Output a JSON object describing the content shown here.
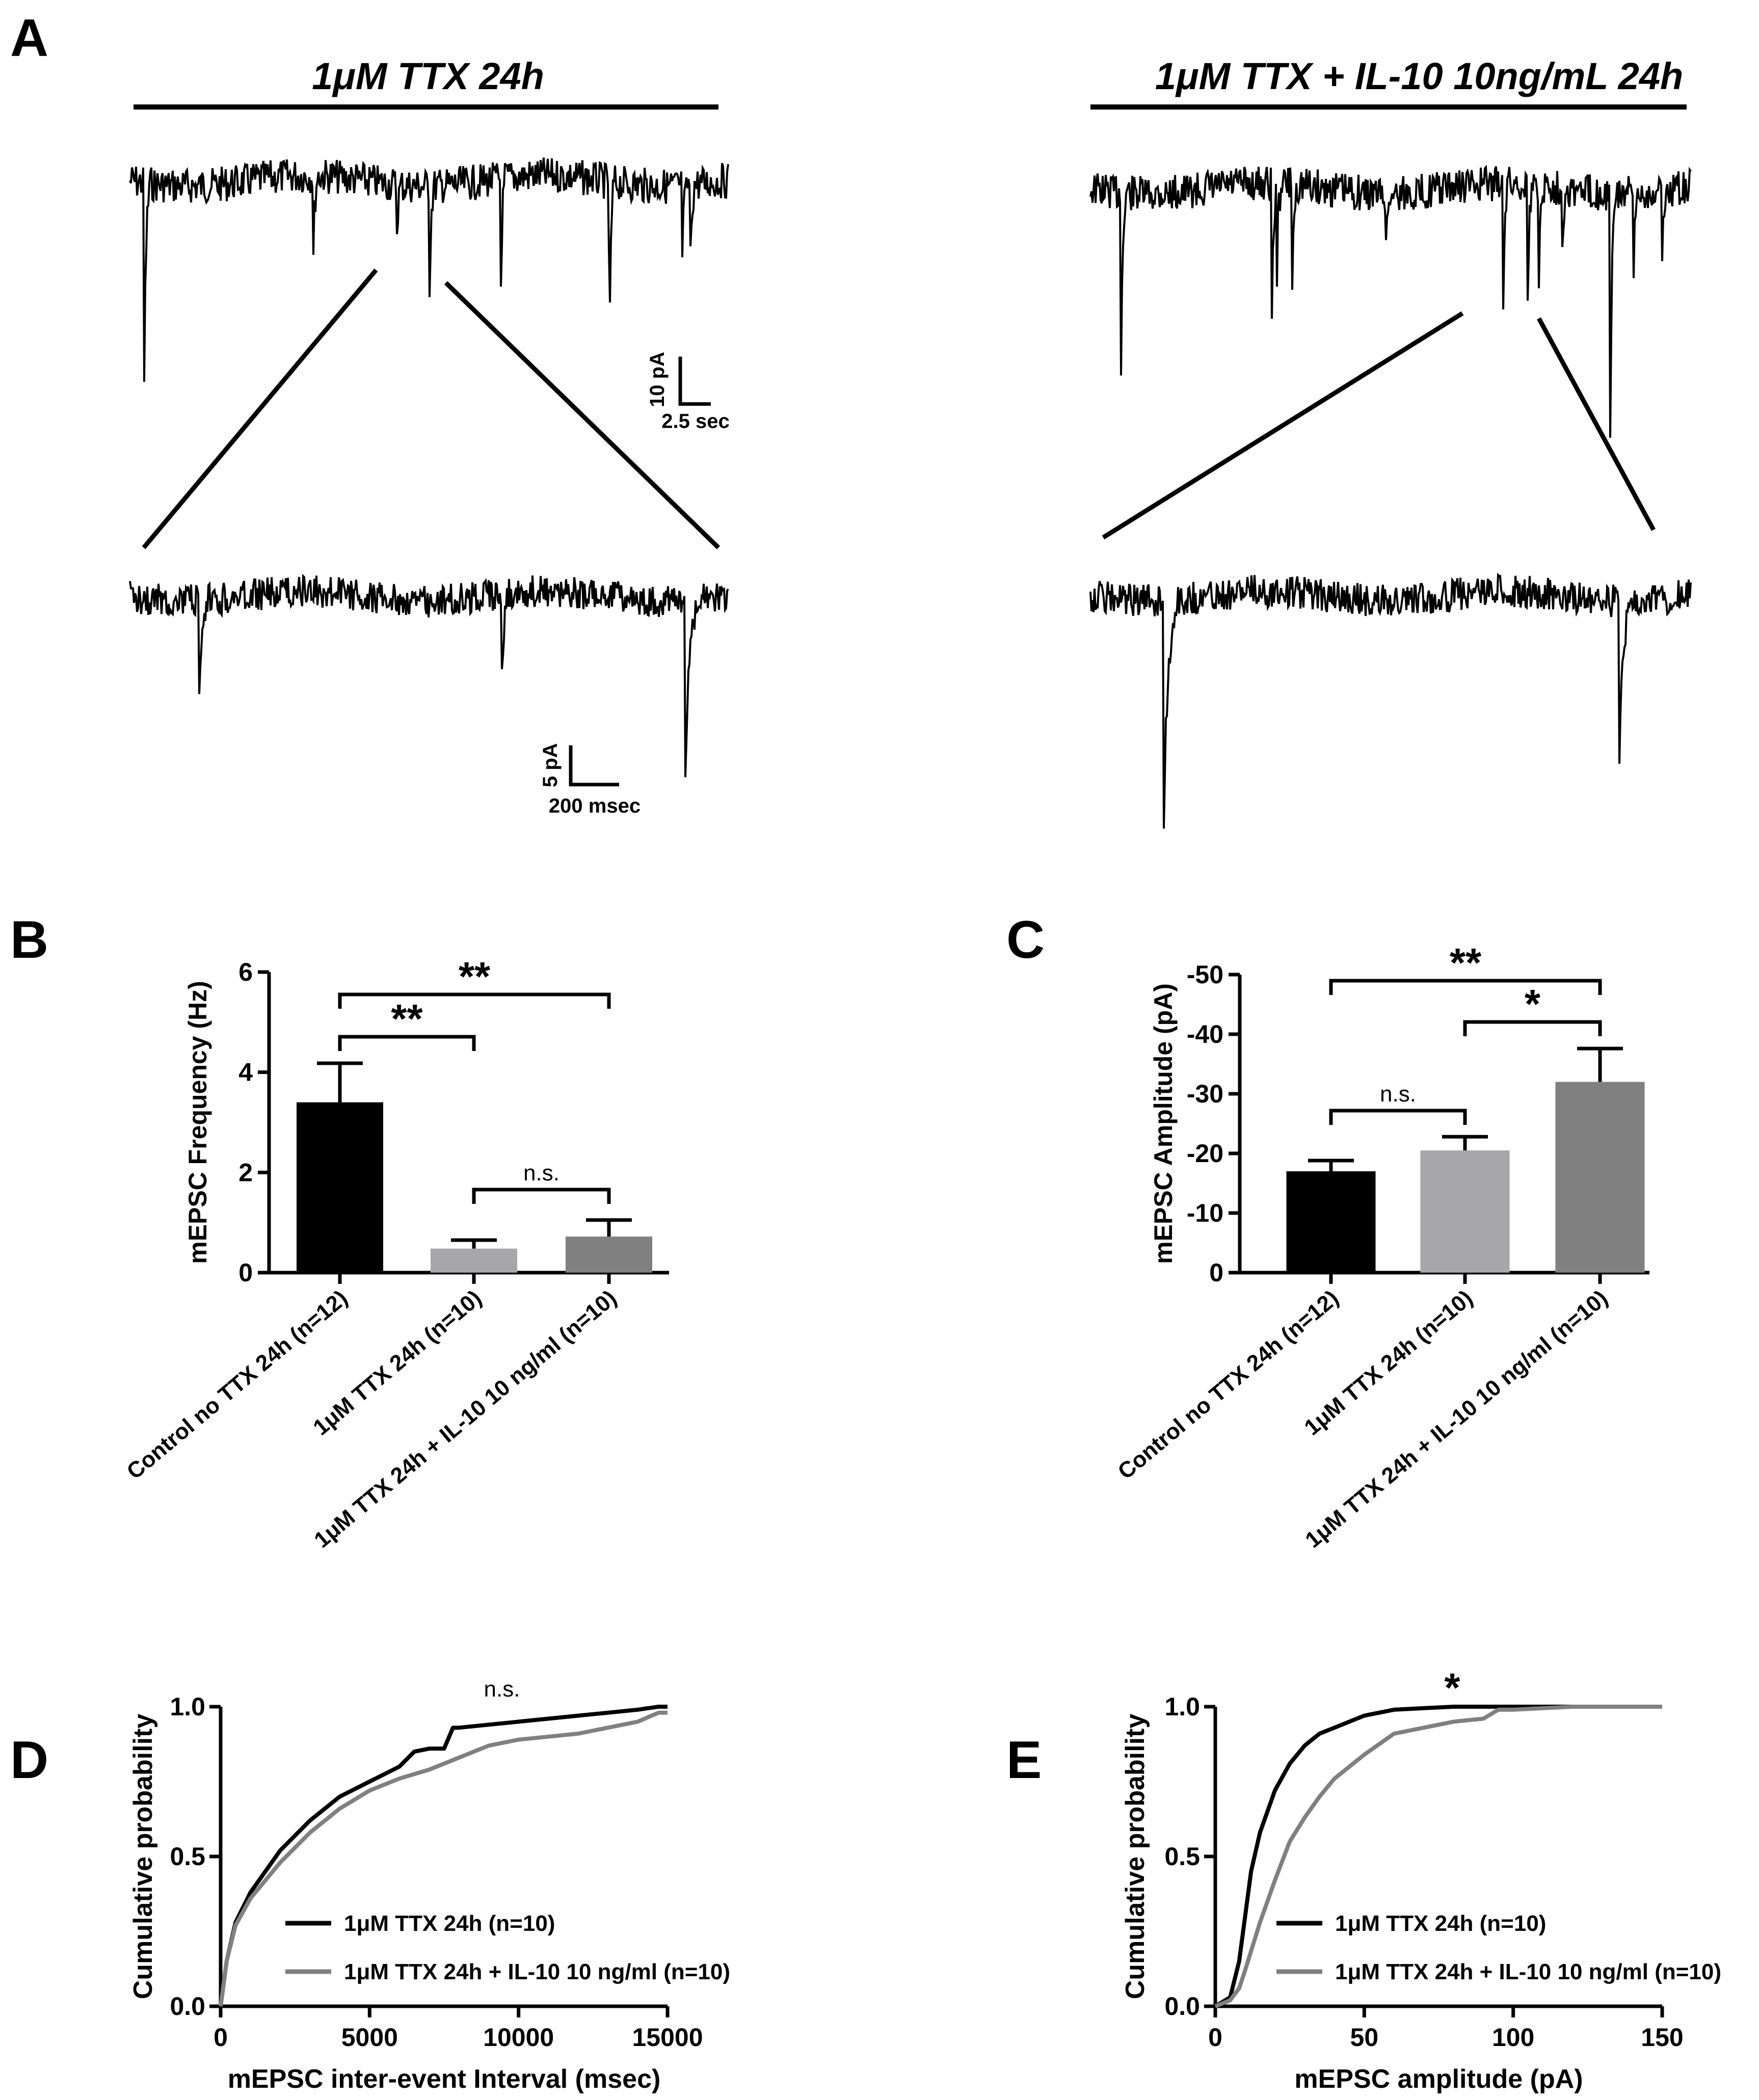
{
  "colors": {
    "black": "#000000",
    "light_gray": "#a6a6ab",
    "dark_gray": "#808080",
    "gray_line": "#808080"
  },
  "panelA": {
    "label": "A",
    "left_title": "1μM TTX 24h",
    "right_title": "1μM TTX + IL-10 10ng/mL 24h",
    "scale_top": {
      "y_label": "10 pA",
      "x_label": "2.5 sec"
    },
    "scale_bottom": {
      "y_label": "5 pA",
      "x_label": "200 msec"
    }
  },
  "chart_data": [
    {
      "panel": "B",
      "type": "bar",
      "ylabel": "mEPSC Frequency (Hz)",
      "ylim": [
        0,
        6
      ],
      "yticks": [
        "0",
        "2",
        "4",
        "6"
      ],
      "categories": [
        "Control no TTX 24h (n=12)",
        "1μM TTX 24h (n=10)",
        "1μM TTX 24h + IL-10 10 ng/ml (n=10)"
      ],
      "values": [
        3.4,
        0.48,
        0.72
      ],
      "errors": [
        0.78,
        0.17,
        0.33
      ],
      "colors": [
        "#000000",
        "#a6a6ab",
        "#808080"
      ],
      "significance": [
        {
          "from": 0,
          "to": 2,
          "label": "**"
        },
        {
          "from": 0,
          "to": 1,
          "label": "**"
        },
        {
          "from": 1,
          "to": 2,
          "label": "n.s."
        }
      ]
    },
    {
      "panel": "C",
      "type": "bar",
      "ylabel": "mEPSC Amplitude (pA)",
      "ylim": [
        0,
        -50
      ],
      "yticks": [
        "0",
        "-10",
        "-20",
        "-30",
        "-40",
        "-50"
      ],
      "categories": [
        "Control no TTX 24h (n=12)",
        "1μM TTX 24h  (n=10)",
        "1μM TTX 24h + IL-10 10 ng/ml (n=10)"
      ],
      "values": [
        -17,
        -20.5,
        -32
      ],
      "errors": [
        1.8,
        2.3,
        5.6
      ],
      "colors": [
        "#000000",
        "#a6a6ab",
        "#808080"
      ],
      "significance": [
        {
          "from": 0,
          "to": 2,
          "label": "**"
        },
        {
          "from": 1,
          "to": 2,
          "label": "*"
        },
        {
          "from": 0,
          "to": 1,
          "label": "n.s."
        }
      ]
    },
    {
      "panel": "D",
      "type": "line",
      "xlabel": "mEPSC inter-event Interval (msec)",
      "ylabel": "Cumulative probability",
      "xlim": [
        0,
        15000
      ],
      "ylim": [
        0,
        1
      ],
      "xticks": [
        "0",
        "5000",
        "10000",
        "15000"
      ],
      "yticks": [
        "0.0",
        "0.5",
        "1.0"
      ],
      "annotation": "n.s.",
      "series": [
        {
          "name": "1μM TTX 24h (n=10)",
          "color": "#000000",
          "x": [
            0,
            200,
            500,
            1000,
            1500,
            2000,
            3000,
            4000,
            5000,
            6000,
            6500,
            7000,
            7500,
            7800,
            8000,
            9000,
            10000,
            11000,
            12000,
            13000,
            14000,
            14700,
            15000
          ],
          "y": [
            0,
            0.15,
            0.28,
            0.38,
            0.45,
            0.52,
            0.62,
            0.7,
            0.75,
            0.8,
            0.85,
            0.86,
            0.86,
            0.93,
            0.93,
            0.94,
            0.95,
            0.96,
            0.97,
            0.98,
            0.99,
            1.0,
            1.0
          ]
        },
        {
          "name": "1μM TTX 24h + IL-10 10 ng/ml (n=10)",
          "color": "#808080",
          "x": [
            0,
            200,
            500,
            1000,
            1500,
            2000,
            3000,
            4000,
            5000,
            6000,
            7000,
            8000,
            9000,
            10000,
            11000,
            12000,
            13000,
            14000,
            14700,
            15000
          ],
          "y": [
            0,
            0.15,
            0.27,
            0.36,
            0.42,
            0.48,
            0.58,
            0.66,
            0.72,
            0.76,
            0.79,
            0.83,
            0.87,
            0.89,
            0.9,
            0.91,
            0.93,
            0.95,
            0.98,
            0.98
          ]
        }
      ]
    },
    {
      "panel": "E",
      "type": "line",
      "xlabel": "mEPSC amplitude (pA)",
      "ylabel": "Cumulative probability",
      "xlim": [
        0,
        150
      ],
      "ylim": [
        0,
        1
      ],
      "xticks": [
        "0",
        "50",
        "100",
        "150"
      ],
      "yticks": [
        "0.0",
        "0.5",
        "1.0"
      ],
      "annotation": "*",
      "series": [
        {
          "name": "1μM TTX 24h (n=10)",
          "color": "#000000",
          "x": [
            0,
            5,
            8,
            10,
            12,
            15,
            20,
            25,
            30,
            35,
            40,
            50,
            60,
            70,
            80,
            100,
            120,
            150
          ],
          "y": [
            0,
            0.03,
            0.15,
            0.3,
            0.45,
            0.58,
            0.72,
            0.81,
            0.87,
            0.91,
            0.93,
            0.97,
            0.99,
            0.995,
            1.0,
            1.0,
            1.0,
            1.0
          ]
        },
        {
          "name": "1μM TTX 24h + IL-10 10 ng/ml (n=10)",
          "color": "#808080",
          "x": [
            0,
            5,
            8,
            10,
            15,
            20,
            25,
            30,
            35,
            40,
            50,
            60,
            70,
            80,
            90,
            95,
            100,
            120,
            150
          ],
          "y": [
            0,
            0.02,
            0.06,
            0.12,
            0.28,
            0.42,
            0.55,
            0.63,
            0.7,
            0.76,
            0.84,
            0.91,
            0.93,
            0.95,
            0.96,
            0.99,
            0.99,
            1.0,
            1.0
          ]
        }
      ]
    }
  ]
}
